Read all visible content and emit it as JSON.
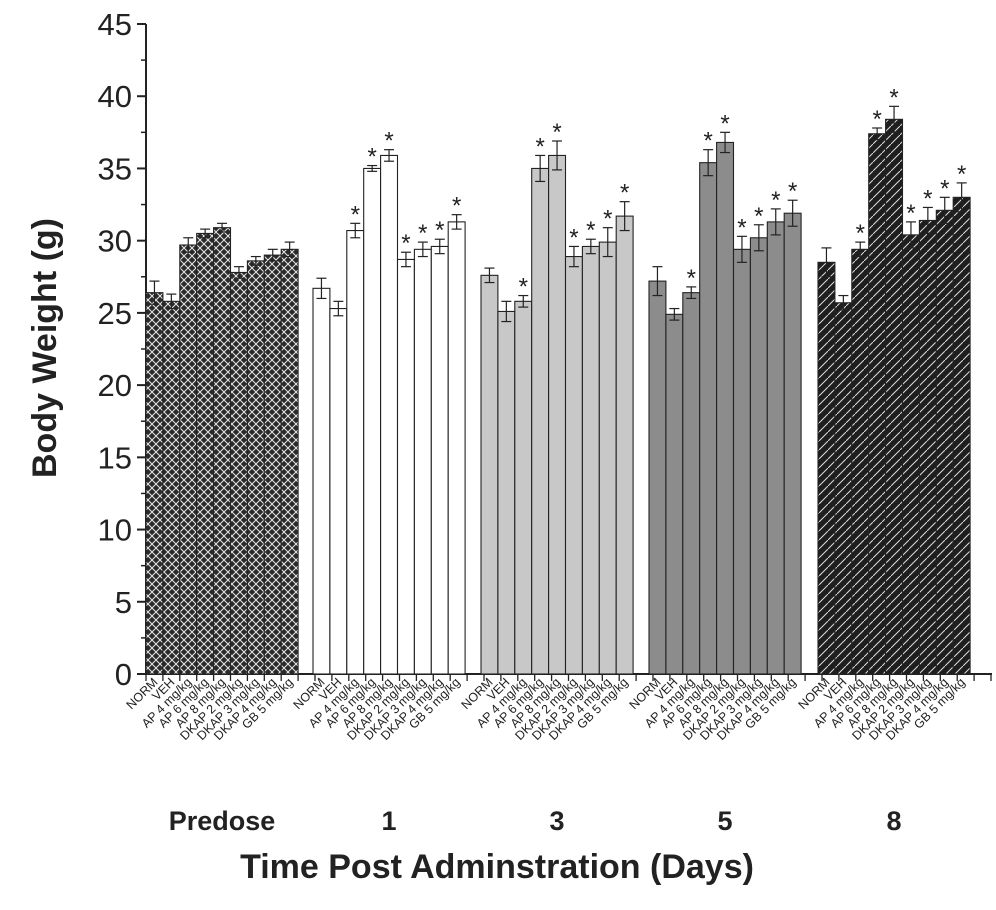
{
  "chart_data": {
    "type": "bar",
    "xlabel": "Time Post Adminstration (Days)",
    "ylabel": "Body Weight (g)",
    "ylim": [
      0,
      45
    ],
    "yticks": [
      "0",
      "5",
      "10",
      "15",
      "20",
      "25",
      "30",
      "35",
      "40",
      "45"
    ],
    "categories": [
      "NORM",
      "VEH",
      "AP 4 mg/kg",
      "AP 6 mg/kg",
      "AP 8 mg/kg",
      "DKAP 2 mg/kg",
      "DKAP 3 mg/kg",
      "DKAP 4 mg/kg",
      "GB 5 mg/kg"
    ],
    "grid": false,
    "significance_marker": "*",
    "groups": [
      {
        "label": "Predose",
        "fill_color": "#2a2a2a",
        "pattern": "crosshatch",
        "values": [
          26.4,
          25.8,
          29.7,
          30.5,
          30.9,
          27.8,
          28.6,
          29.0,
          29.4
        ],
        "errors": [
          0.8,
          0.5,
          0.5,
          0.3,
          0.3,
          0.4,
          0.3,
          0.4,
          0.5
        ],
        "significant": [
          false,
          false,
          false,
          false,
          false,
          false,
          false,
          false,
          false
        ]
      },
      {
        "label": "1",
        "fill_color": "#ffffff",
        "pattern": "none",
        "values": [
          26.7,
          25.3,
          30.7,
          35.0,
          35.9,
          28.7,
          29.4,
          29.6,
          31.3
        ],
        "errors": [
          0.7,
          0.5,
          0.5,
          0.2,
          0.4,
          0.5,
          0.5,
          0.5,
          0.5
        ],
        "significant": [
          false,
          false,
          true,
          true,
          true,
          true,
          true,
          true,
          true
        ]
      },
      {
        "label": "3",
        "fill_color": "#c8c8c8",
        "pattern": "none",
        "values": [
          27.6,
          25.1,
          25.8,
          35.0,
          35.9,
          28.9,
          29.6,
          29.9,
          31.7
        ],
        "errors": [
          0.5,
          0.7,
          0.4,
          0.9,
          1.0,
          0.7,
          0.5,
          1.0,
          1.0
        ],
        "significant": [
          false,
          false,
          true,
          true,
          true,
          true,
          true,
          true,
          true
        ]
      },
      {
        "label": "5",
        "fill_color": "#8c8c8c",
        "pattern": "none",
        "values": [
          27.2,
          24.9,
          26.4,
          35.4,
          36.8,
          29.4,
          30.2,
          31.3,
          31.9
        ],
        "errors": [
          1.0,
          0.4,
          0.4,
          0.9,
          0.7,
          0.9,
          0.9,
          0.9,
          0.9
        ],
        "significant": [
          false,
          false,
          true,
          true,
          true,
          true,
          true,
          true,
          true
        ]
      },
      {
        "label": "8",
        "fill_color": "#1e1e1e",
        "pattern": "diagonal",
        "values": [
          28.5,
          25.7,
          29.4,
          37.4,
          38.4,
          30.4,
          31.4,
          32.1,
          33.0
        ],
        "errors": [
          1.0,
          0.5,
          0.5,
          0.4,
          0.9,
          0.9,
          0.9,
          0.9,
          1.0
        ],
        "significant": [
          false,
          false,
          true,
          true,
          true,
          true,
          true,
          true,
          true
        ]
      }
    ]
  }
}
